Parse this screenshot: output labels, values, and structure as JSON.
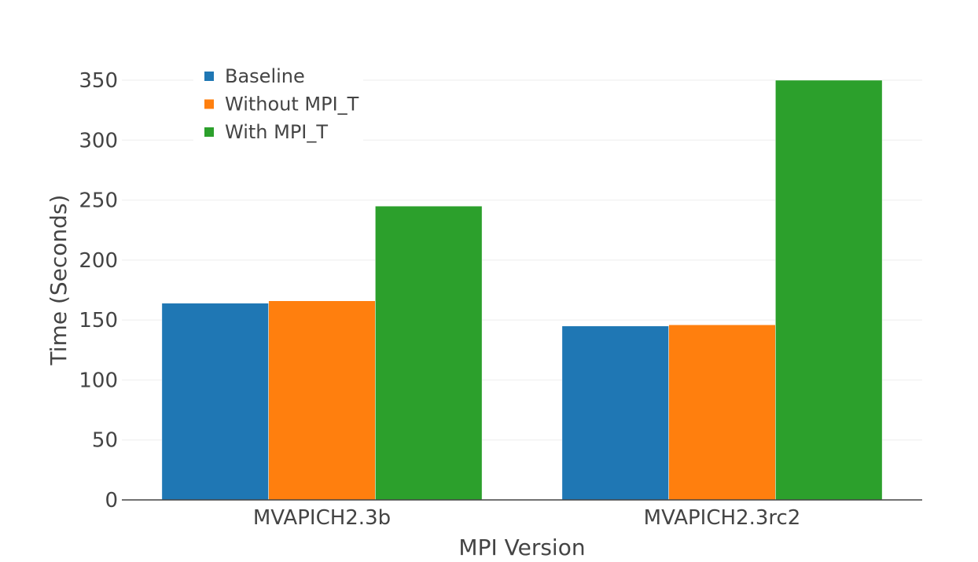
{
  "chart_data": {
    "type": "bar",
    "title": "",
    "xlabel": "MPI Version",
    "ylabel": "Time (Seconds)",
    "categories": [
      "MVAPICH2.3b",
      "MVAPICH2.3rc2"
    ],
    "series": [
      {
        "name": "Baseline",
        "values": [
          164,
          145
        ],
        "color": "#1f77b4"
      },
      {
        "name": "Without MPI_T",
        "values": [
          166,
          146
        ],
        "color": "#ff7f0e"
      },
      {
        "name": "With MPI_T",
        "values": [
          245,
          350
        ],
        "color": "#2ca02c"
      }
    ],
    "ylim": [
      0,
      350
    ],
    "yticks": [
      "0",
      "50",
      "100",
      "150",
      "200",
      "250",
      "300",
      "350"
    ],
    "grid": true,
    "legend_position": "top-left"
  }
}
